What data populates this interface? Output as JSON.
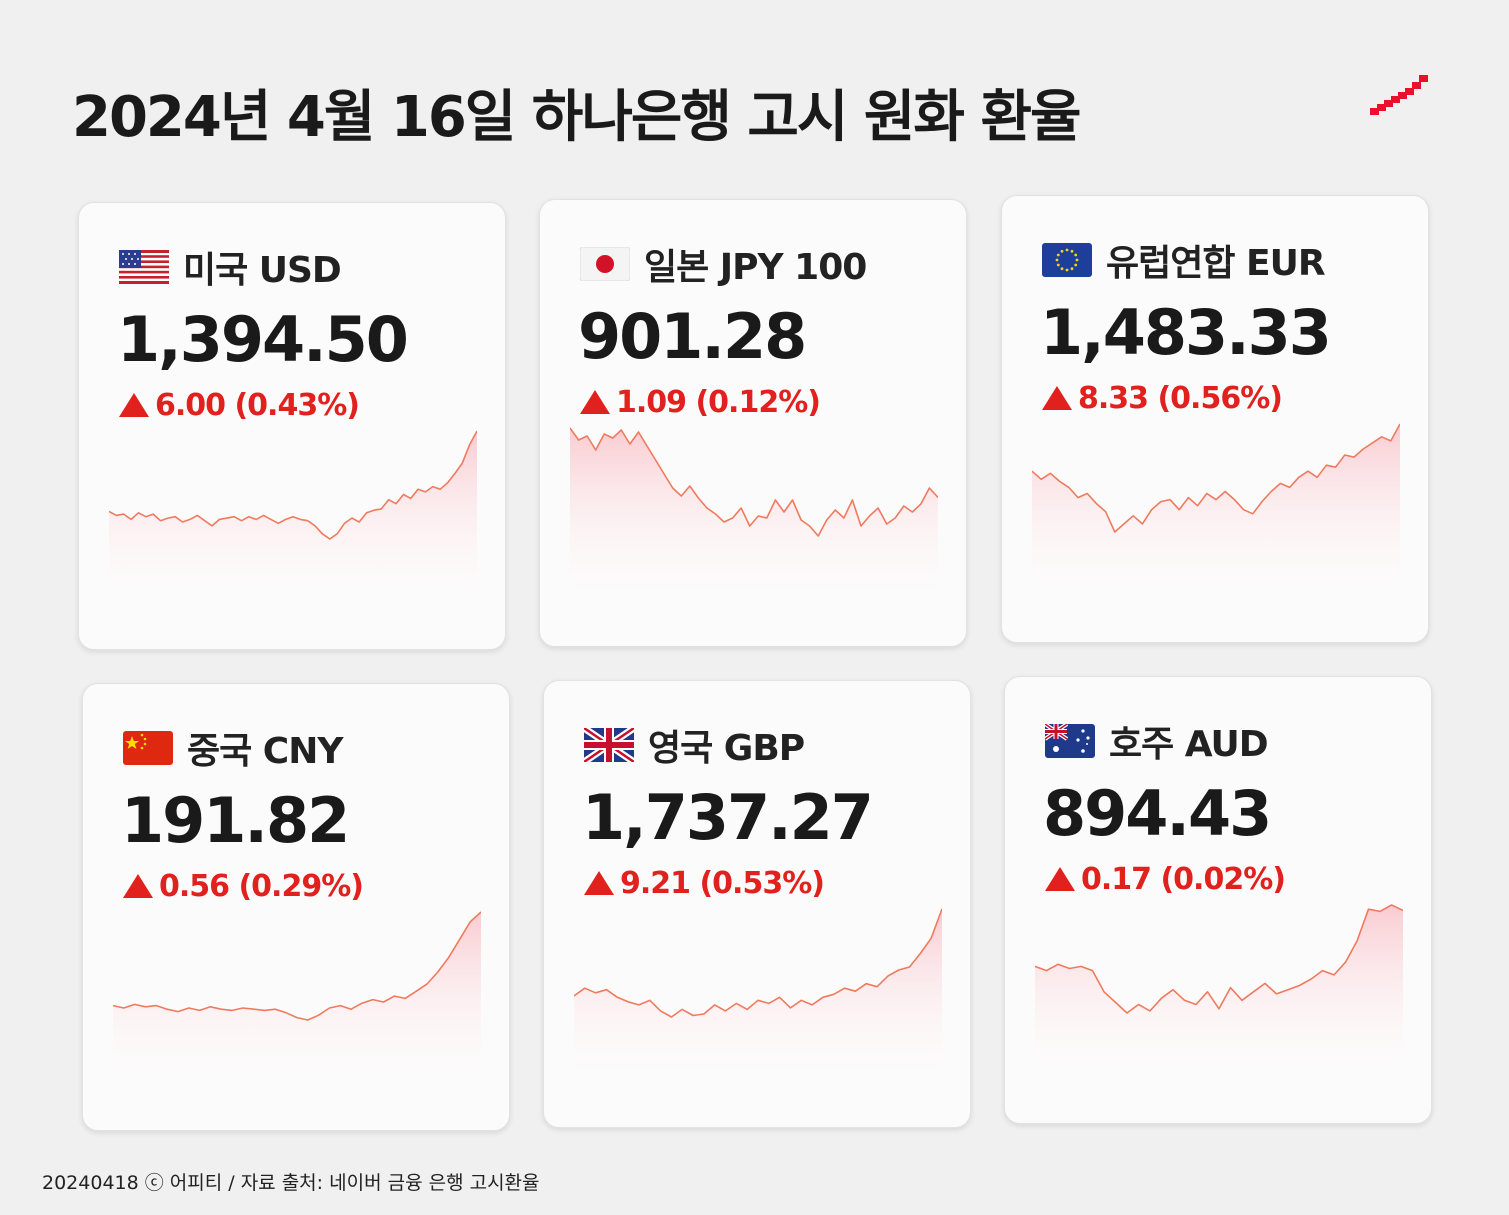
{
  "title": "2024년 4월 16일 하나은행 고시 원화 환율",
  "footer": "20240418 ⓒ 어피티 / 자료 출처: 네이버 금융 은행 고시환율",
  "colors": {
    "up": "#e0211d",
    "line": "#f07a5e",
    "fill": "#f9c6cc",
    "background": "#f0f0f0"
  },
  "chart_data": [
    {
      "type": "line",
      "title": "미국 USD",
      "currency": "USD",
      "flag": "us-flag-icon",
      "rate": "1,394.50",
      "change": "6.00 (0.43%)",
      "direction": "up",
      "values": [
        1333,
        1330,
        1331,
        1327,
        1332,
        1329,
        1331,
        1326,
        1328,
        1329,
        1325,
        1327,
        1330,
        1326,
        1322,
        1327,
        1328,
        1329,
        1326,
        1329,
        1327,
        1330,
        1327,
        1324,
        1327,
        1329,
        1327,
        1326,
        1322,
        1316,
        1312,
        1316,
        1324,
        1328,
        1325,
        1332,
        1334,
        1335,
        1342,
        1339,
        1346,
        1343,
        1350,
        1348,
        1352,
        1350,
        1355,
        1362,
        1370,
        1384,
        1394.5
      ]
    },
    {
      "type": "line",
      "title": "일본 JPY 100",
      "currency": "JPY",
      "flag": "jp-flag-icon",
      "rate": "901.28",
      "change": "1.09 (0.12%)",
      "direction": "up",
      "values": [
        936,
        930,
        932,
        925,
        933,
        931,
        935,
        928,
        934,
        927,
        920,
        913,
        906,
        902,
        907,
        901,
        896,
        893,
        889,
        891,
        896,
        887,
        892,
        891,
        900,
        894,
        900,
        890,
        887,
        882,
        890,
        895,
        891,
        900,
        887,
        892,
        896,
        888,
        891,
        897,
        894,
        898,
        906,
        901.28
      ]
    },
    {
      "type": "line",
      "title": "유럽연합 EUR",
      "currency": "EUR",
      "flag": "eu-flag-icon",
      "rate": "1,483.33",
      "change": "8.33 (0.56%)",
      "direction": "up",
      "values": [
        1460,
        1456,
        1459,
        1455,
        1452,
        1447,
        1449,
        1444,
        1440,
        1430,
        1434,
        1438,
        1434,
        1441,
        1445,
        1446,
        1441,
        1447,
        1443,
        1449,
        1446,
        1450,
        1446,
        1441,
        1439,
        1445,
        1450,
        1454,
        1452,
        1457,
        1460,
        1457,
        1463,
        1462,
        1468,
        1467,
        1471,
        1474,
        1477,
        1475,
        1483.33
      ]
    },
    {
      "type": "line",
      "title": "중국 CNY",
      "currency": "CNY",
      "flag": "cn-flag-icon",
      "rate": "191.82",
      "change": "0.56 (0.29%)",
      "direction": "up",
      "values": [
        184.0,
        183.8,
        184.1,
        183.9,
        184.0,
        183.7,
        183.5,
        183.8,
        183.6,
        183.9,
        183.7,
        183.6,
        183.8,
        183.7,
        183.6,
        183.7,
        183.4,
        183.0,
        182.8,
        183.2,
        183.8,
        184.0,
        183.7,
        184.2,
        184.5,
        184.3,
        184.8,
        184.6,
        185.2,
        185.8,
        186.8,
        188.0,
        189.5,
        191.0,
        191.82
      ]
    },
    {
      "type": "line",
      "title": "영국 GBP",
      "currency": "GBP",
      "flag": "gb-flag-icon",
      "rate": "1,737.27",
      "change": "9.21 (0.53%)",
      "direction": "up",
      "values": [
        1680,
        1685,
        1682,
        1684,
        1679,
        1676,
        1674,
        1677,
        1670,
        1666,
        1671,
        1667,
        1668,
        1674,
        1670,
        1675,
        1671,
        1677,
        1675,
        1679,
        1672,
        1677,
        1674,
        1679,
        1681,
        1685,
        1683,
        1688,
        1686,
        1693,
        1697,
        1699,
        1708,
        1718,
        1737.27
      ]
    },
    {
      "type": "line",
      "title": "호주 AUD",
      "currency": "AUD",
      "flag": "au-flag-icon",
      "rate": "894.43",
      "change": "0.17 (0.02%)",
      "direction": "up",
      "values": [
        868,
        866,
        869,
        867,
        868,
        866,
        856,
        851,
        846,
        850,
        847,
        853,
        857,
        852,
        850,
        856,
        848,
        858,
        852,
        856,
        860,
        855,
        857,
        859,
        862,
        866,
        864,
        870,
        880,
        895,
        894,
        897,
        894.43
      ]
    }
  ]
}
